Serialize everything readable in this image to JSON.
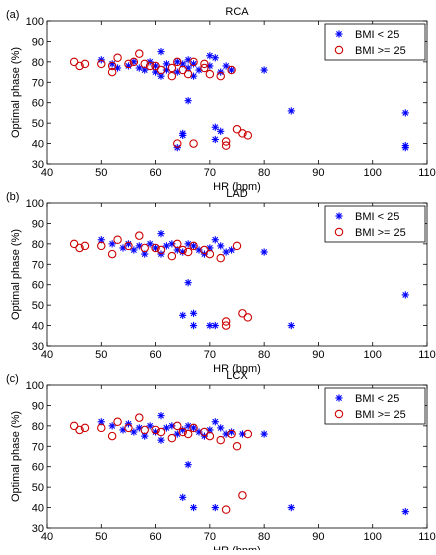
{
  "colors": {
    "bmi_lt_25": "#0000ff",
    "bmi_ge_25": "#cc0000"
  },
  "chart_data": [
    {
      "type": "scatter",
      "panel": "(a)",
      "title": "RCA",
      "xlabel": "HR (bpm)",
      "ylabel": "Optimal phase (%)",
      "xlim": [
        40,
        110
      ],
      "ylim": [
        30,
        100
      ],
      "xticks": [
        40,
        50,
        60,
        70,
        80,
        90,
        100,
        110
      ],
      "yticks": [
        30,
        40,
        50,
        60,
        70,
        80,
        90,
        100
      ],
      "grid": false,
      "legend_position": "top-right",
      "series": [
        {
          "name": "BMI < 25",
          "marker": "star",
          "points": [
            [
              50,
              81
            ],
            [
              52,
              79
            ],
            [
              53,
              77
            ],
            [
              55,
              78
            ],
            [
              56,
              80
            ],
            [
              57,
              77
            ],
            [
              58,
              76
            ],
            [
              59,
              80
            ],
            [
              60,
              78
            ],
            [
              60,
              75
            ],
            [
              61,
              85
            ],
            [
              61,
              73
            ],
            [
              62,
              79
            ],
            [
              62,
              76
            ],
            [
              64,
              80
            ],
            [
              64,
              75
            ],
            [
              65,
              79
            ],
            [
              66,
              81
            ],
            [
              66,
              77
            ],
            [
              66,
              61
            ],
            [
              67,
              79
            ],
            [
              67,
              73
            ],
            [
              68,
              76
            ],
            [
              70,
              83
            ],
            [
              70,
              78
            ],
            [
              71,
              82
            ],
            [
              71,
              48
            ],
            [
              71,
              42
            ],
            [
              72,
              46
            ],
            [
              72,
              75
            ],
            [
              73,
              78
            ],
            [
              74,
              76
            ],
            [
              80,
              76
            ],
            [
              65,
              44
            ],
            [
              64,
              38
            ],
            [
              65,
              45
            ],
            [
              85,
              56
            ],
            [
              106,
              55
            ],
            [
              106,
              39
            ],
            [
              106,
              38
            ]
          ]
        },
        {
          "name": "BMI >= 25",
          "marker": "circle",
          "points": [
            [
              45,
              80
            ],
            [
              46,
              78
            ],
            [
              47,
              79
            ],
            [
              50,
              79
            ],
            [
              52,
              75
            ],
            [
              52,
              78
            ],
            [
              53,
              82
            ],
            [
              55,
              79
            ],
            [
              56,
              80
            ],
            [
              57,
              84
            ],
            [
              58,
              79
            ],
            [
              59,
              78
            ],
            [
              60,
              78
            ],
            [
              61,
              76
            ],
            [
              63,
              77
            ],
            [
              63,
              73
            ],
            [
              64,
              80
            ],
            [
              64,
              40
            ],
            [
              65,
              76
            ],
            [
              66,
              74
            ],
            [
              67,
              80
            ],
            [
              67,
              40
            ],
            [
              69,
              79
            ],
            [
              69,
              77
            ],
            [
              70,
              74
            ],
            [
              72,
              73
            ],
            [
              73,
              41
            ],
            [
              73,
              39
            ],
            [
              74,
              76
            ],
            [
              75,
              47
            ],
            [
              76,
              45
            ],
            [
              77,
              44
            ]
          ]
        }
      ]
    },
    {
      "type": "scatter",
      "panel": "(b)",
      "title": "LAD",
      "xlabel": "HR (bpm)",
      "ylabel": "Optimal phase (%)",
      "xlim": [
        40,
        110
      ],
      "ylim": [
        30,
        100
      ],
      "xticks": [
        40,
        50,
        60,
        70,
        80,
        90,
        100,
        110
      ],
      "yticks": [
        30,
        40,
        50,
        60,
        70,
        80,
        90,
        100
      ],
      "grid": false,
      "legend_position": "top-right",
      "series": [
        {
          "name": "BMI < 25",
          "marker": "star",
          "points": [
            [
              50,
              82
            ],
            [
              52,
              80
            ],
            [
              54,
              78
            ],
            [
              55,
              80
            ],
            [
              56,
              77
            ],
            [
              57,
              79
            ],
            [
              58,
              75
            ],
            [
              59,
              80
            ],
            [
              60,
              78
            ],
            [
              61,
              85
            ],
            [
              61,
              75
            ],
            [
              62,
              79
            ],
            [
              63,
              80
            ],
            [
              64,
              77
            ],
            [
              65,
              76
            ],
            [
              65,
              45
            ],
            [
              66,
              80
            ],
            [
              66,
              61
            ],
            [
              67,
              79
            ],
            [
              67,
              46
            ],
            [
              67,
              40
            ],
            [
              68,
              77
            ],
            [
              69,
              75
            ],
            [
              70,
              78
            ],
            [
              70,
              40
            ],
            [
              71,
              82
            ],
            [
              71,
              40
            ],
            [
              72,
              79
            ],
            [
              73,
              76
            ],
            [
              74,
              77
            ],
            [
              80,
              76
            ],
            [
              85,
              40
            ],
            [
              106,
              55
            ]
          ]
        },
        {
          "name": "BMI >= 25",
          "marker": "circle",
          "points": [
            [
              45,
              80
            ],
            [
              46,
              78
            ],
            [
              47,
              79
            ],
            [
              50,
              79
            ],
            [
              52,
              75
            ],
            [
              53,
              82
            ],
            [
              55,
              79
            ],
            [
              57,
              84
            ],
            [
              58,
              78
            ],
            [
              60,
              78
            ],
            [
              61,
              77
            ],
            [
              63,
              74
            ],
            [
              64,
              80
            ],
            [
              65,
              77
            ],
            [
              66,
              76
            ],
            [
              67,
              79
            ],
            [
              69,
              77
            ],
            [
              70,
              75
            ],
            [
              72,
              73
            ],
            [
              73,
              42
            ],
            [
              73,
              40
            ],
            [
              75,
              79
            ],
            [
              76,
              46
            ],
            [
              77,
              44
            ]
          ]
        }
      ]
    },
    {
      "type": "scatter",
      "panel": "(c)",
      "title": "LCX",
      "xlabel": "HR (bpm)",
      "ylabel": "Optimal phase (%)",
      "xlim": [
        40,
        110
      ],
      "ylim": [
        30,
        100
      ],
      "xticks": [
        40,
        50,
        60,
        70,
        80,
        90,
        100,
        110
      ],
      "yticks": [
        30,
        40,
        50,
        60,
        70,
        80,
        90,
        100
      ],
      "grid": false,
      "legend_position": "top-right",
      "series": [
        {
          "name": "BMI < 25",
          "marker": "star",
          "points": [
            [
              50,
              82
            ],
            [
              52,
              80
            ],
            [
              54,
              78
            ],
            [
              55,
              81
            ],
            [
              56,
              77
            ],
            [
              57,
              79
            ],
            [
              58,
              75
            ],
            [
              59,
              80
            ],
            [
              60,
              77
            ],
            [
              61,
              85
            ],
            [
              61,
              73
            ],
            [
              62,
              79
            ],
            [
              63,
              80
            ],
            [
              64,
              76
            ],
            [
              65,
              78
            ],
            [
              65,
              45
            ],
            [
              66,
              80
            ],
            [
              66,
              61
            ],
            [
              67,
              79
            ],
            [
              67,
              40
            ],
            [
              68,
              77
            ],
            [
              69,
              75
            ],
            [
              70,
              78
            ],
            [
              71,
              82
            ],
            [
              71,
              40
            ],
            [
              72,
              79
            ],
            [
              73,
              76
            ],
            [
              74,
              77
            ],
            [
              76,
              76
            ],
            [
              80,
              76
            ],
            [
              85,
              40
            ],
            [
              106,
              38
            ]
          ]
        },
        {
          "name": "BMI >= 25",
          "marker": "circle",
          "points": [
            [
              45,
              80
            ],
            [
              46,
              78
            ],
            [
              47,
              79
            ],
            [
              50,
              79
            ],
            [
              52,
              75
            ],
            [
              53,
              82
            ],
            [
              55,
              79
            ],
            [
              57,
              84
            ],
            [
              58,
              78
            ],
            [
              60,
              78
            ],
            [
              61,
              77
            ],
            [
              63,
              74
            ],
            [
              64,
              80
            ],
            [
              65,
              77
            ],
            [
              66,
              76
            ],
            [
              67,
              79
            ],
            [
              69,
              77
            ],
            [
              70,
              75
            ],
            [
              72,
              73
            ],
            [
              73,
              39
            ],
            [
              74,
              76
            ],
            [
              75,
              70
            ],
            [
              76,
              46
            ],
            [
              77,
              76
            ]
          ]
        }
      ]
    }
  ]
}
